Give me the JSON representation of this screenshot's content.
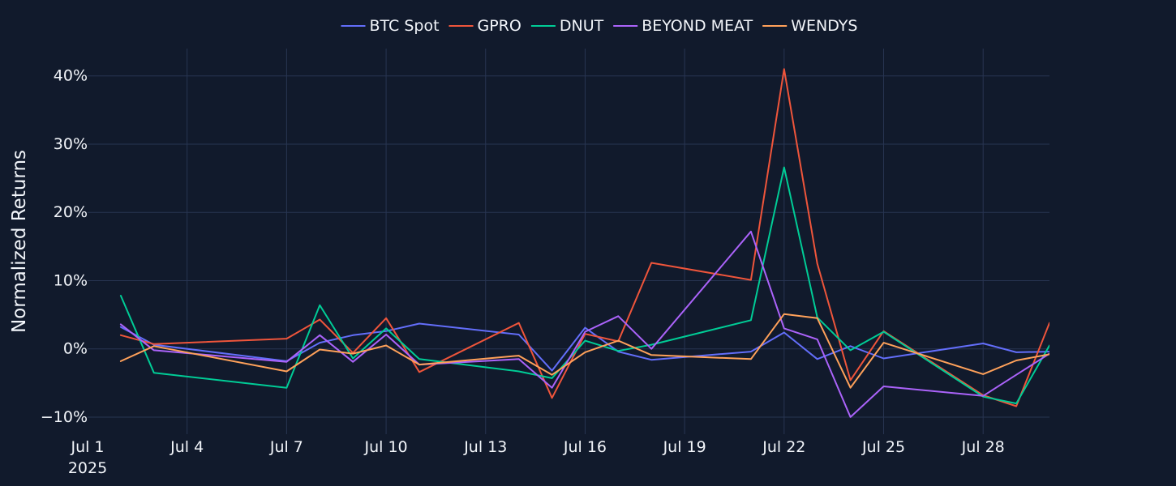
{
  "chart_data": {
    "type": "line",
    "xlabel": "",
    "ylabel": "Normalized Returns",
    "x_ticks": [
      {
        "date": "2025-07-01",
        "label": "Jul 1",
        "sublabel": "2025"
      },
      {
        "date": "2025-07-04",
        "label": "Jul 4"
      },
      {
        "date": "2025-07-07",
        "label": "Jul 7"
      },
      {
        "date": "2025-07-10",
        "label": "Jul 10"
      },
      {
        "date": "2025-07-13",
        "label": "Jul 13"
      },
      {
        "date": "2025-07-16",
        "label": "Jul 16"
      },
      {
        "date": "2025-07-19",
        "label": "Jul 19"
      },
      {
        "date": "2025-07-22",
        "label": "Jul 22"
      },
      {
        "date": "2025-07-25",
        "label": "Jul 25"
      },
      {
        "date": "2025-07-28",
        "label": "Jul 28"
      }
    ],
    "y_ticks": [
      {
        "value": -10,
        "label": "−10%"
      },
      {
        "value": 0,
        "label": "0%"
      },
      {
        "value": 10,
        "label": "10%"
      },
      {
        "value": 20,
        "label": "20%"
      },
      {
        "value": 30,
        "label": "30%"
      },
      {
        "value": 40,
        "label": "40%"
      }
    ],
    "xlim": [
      "2025-07-01",
      "2025-07-30"
    ],
    "ylim": [
      -12.5,
      44
    ],
    "grid": true,
    "legend_position": "top-center",
    "dates": [
      "2025-07-02",
      "2025-07-03",
      "2025-07-07",
      "2025-07-08",
      "2025-07-09",
      "2025-07-10",
      "2025-07-11",
      "2025-07-14",
      "2025-07-15",
      "2025-07-16",
      "2025-07-17",
      "2025-07-18",
      "2025-07-21",
      "2025-07-22",
      "2025-07-23",
      "2025-07-24",
      "2025-07-25",
      "2025-07-28",
      "2025-07-29",
      "2025-07-30"
    ],
    "series": [
      {
        "name": "BTC Spot",
        "color": "#636efa",
        "values": [
          3.2,
          0.6,
          -1.8,
          0.9,
          2.0,
          2.6,
          3.7,
          2.1,
          -3.2,
          3.1,
          -0.4,
          -1.6,
          -0.4,
          2.4,
          -1.5,
          0.4,
          -1.4,
          0.8,
          -0.5,
          -0.4
        ]
      },
      {
        "name": "GPRO",
        "color": "#ef553b",
        "values": [
          2.0,
          0.7,
          1.5,
          4.3,
          -0.6,
          4.5,
          -3.4,
          3.8,
          -7.2,
          2.2,
          1.1,
          12.6,
          10.1,
          41.0,
          12.5,
          -4.6,
          2.6,
          -6.8,
          -8.4,
          3.8
        ]
      },
      {
        "name": "DNUT",
        "color": "#00cc96",
        "values": [
          7.8,
          -3.5,
          -5.7,
          6.4,
          -1.4,
          3.0,
          -1.5,
          -3.3,
          -4.3,
          1.2,
          -0.3,
          0.6,
          4.2,
          26.6,
          4.6,
          -0.2,
          2.5,
          -7.0,
          -8.0,
          0.5
        ]
      },
      {
        "name": "BEYOND MEAT",
        "color": "#ab63fa",
        "values": [
          3.6,
          -0.2,
          -1.9,
          2.0,
          -1.9,
          2.1,
          -2.3,
          -1.5,
          -5.7,
          2.5,
          4.8,
          0.0,
          17.2,
          3.0,
          1.4,
          -10.0,
          -5.5,
          -6.9,
          -3.8,
          -0.7
        ]
      },
      {
        "name": "WENDYS",
        "color": "#ffa15a",
        "values": [
          -1.8,
          0.4,
          -3.3,
          -0.1,
          -0.7,
          0.5,
          -2.3,
          -1.0,
          -3.8,
          -0.5,
          1.2,
          -0.9,
          -1.5,
          5.1,
          4.5,
          -5.7,
          0.9,
          -3.7,
          -1.7,
          -0.8
        ]
      }
    ]
  }
}
